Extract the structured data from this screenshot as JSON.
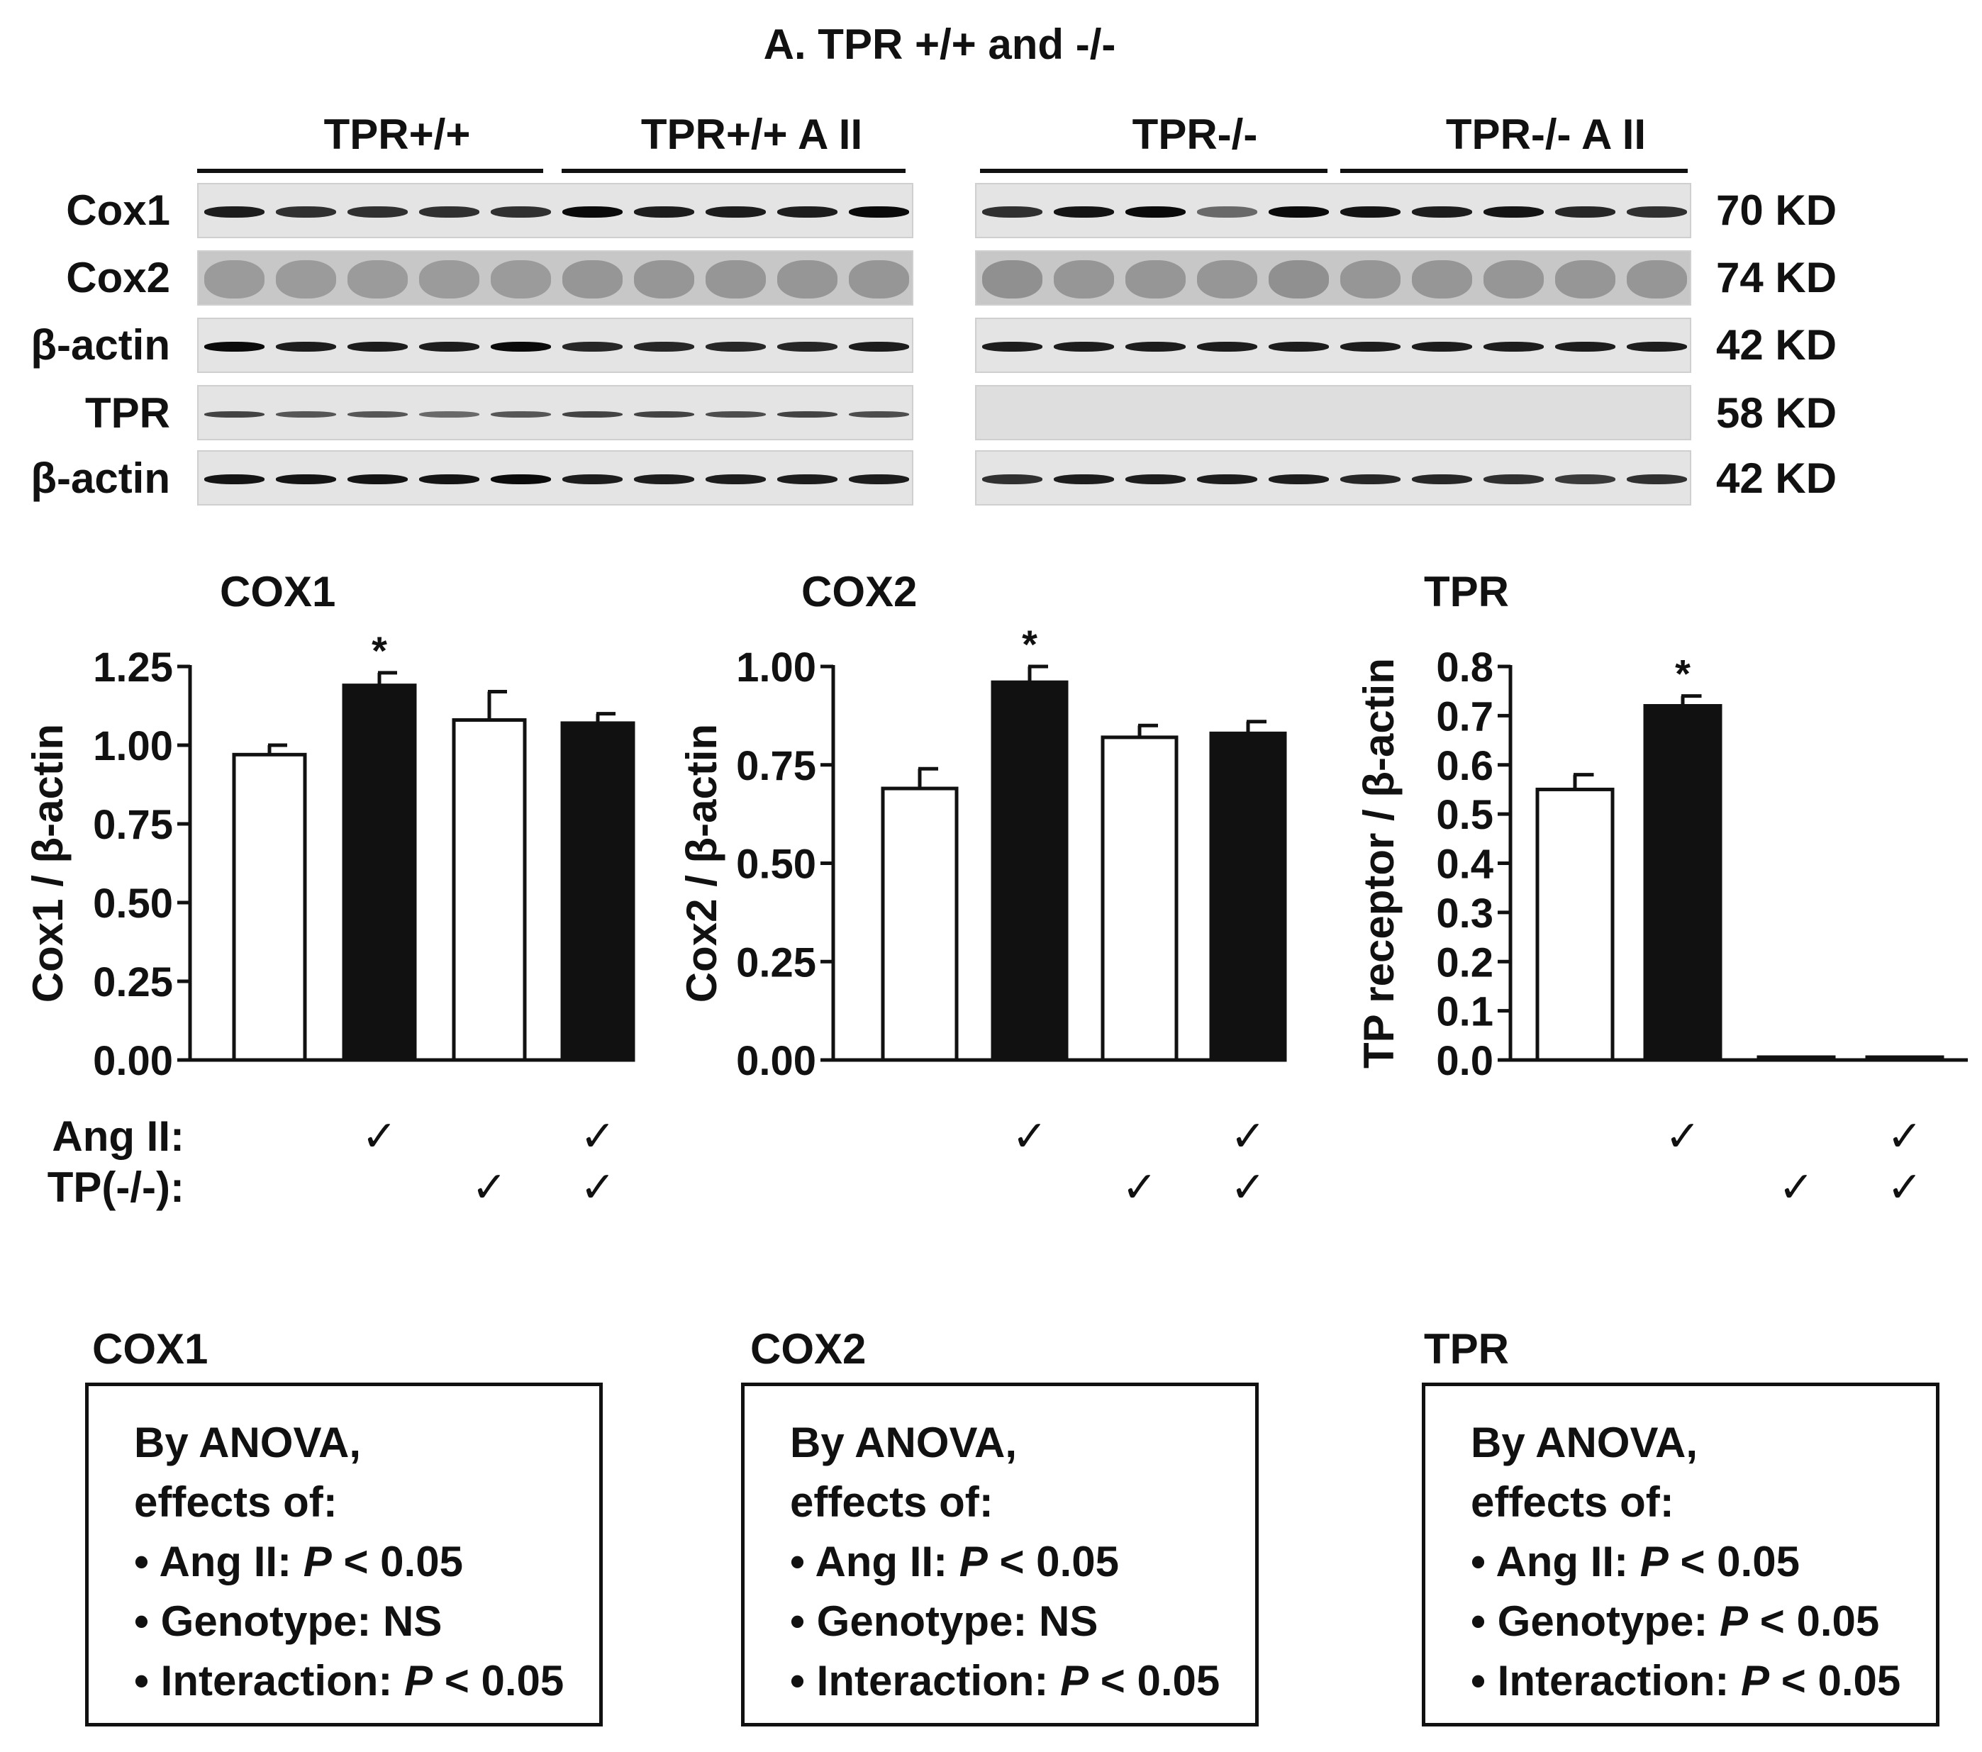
{
  "figure_title": "A. TPR +/+ and -/-",
  "blot": {
    "groups": [
      "TPR+/+",
      "TPR+/+ A II",
      "TPR-/-",
      "TPR-/- A II"
    ],
    "rows": [
      {
        "label": "Cox1",
        "kd": "70 KD"
      },
      {
        "label": "Cox2",
        "kd": "74 KD"
      },
      {
        "label": "β-actin",
        "kd": "42 KD"
      },
      {
        "label": "TPR",
        "kd": "58 KD"
      },
      {
        "label": "β-actin",
        "kd": "42 KD"
      }
    ]
  },
  "chart_data": [
    {
      "type": "bar",
      "title": "COX1",
      "ylabel": "Cox1 / β-actin",
      "ylim": [
        0,
        1.25
      ],
      "yticks": [
        "0.00",
        "0.25",
        "0.50",
        "0.75",
        "1.00",
        "1.25"
      ],
      "ytick_values": [
        0,
        0.25,
        0.5,
        0.75,
        1.0,
        1.25
      ],
      "values": [
        0.97,
        1.19,
        1.08,
        1.07
      ],
      "errors": [
        0.03,
        0.04,
        0.09,
        0.03
      ],
      "bar_colors": [
        "#ffffff",
        "#111111",
        "#ffffff",
        "#111111"
      ],
      "significance": [
        "",
        "*",
        "",
        ""
      ]
    },
    {
      "type": "bar",
      "title": "COX2",
      "ylabel": "Cox2 / β-actin",
      "ylim": [
        0,
        1.0
      ],
      "yticks": [
        "0.00",
        "0.25",
        "0.50",
        "0.75",
        "1.00"
      ],
      "ytick_values": [
        0,
        0.25,
        0.5,
        0.75,
        1.0
      ],
      "values": [
        0.69,
        0.96,
        0.82,
        0.83
      ],
      "errors": [
        0.05,
        0.04,
        0.03,
        0.03
      ],
      "bar_colors": [
        "#ffffff",
        "#111111",
        "#ffffff",
        "#111111"
      ],
      "significance": [
        "",
        "*",
        "",
        ""
      ]
    },
    {
      "type": "bar",
      "title": "TPR",
      "ylabel": "TP receptor / β-actin",
      "ylim": [
        0,
        0.8
      ],
      "yticks": [
        "0.0",
        "0.1",
        "0.2",
        "0.3",
        "0.4",
        "0.5",
        "0.6",
        "0.7",
        "0.8"
      ],
      "ytick_values": [
        0,
        0.1,
        0.2,
        0.3,
        0.4,
        0.5,
        0.6,
        0.7,
        0.8
      ],
      "values": [
        0.55,
        0.72,
        0.0,
        0.0
      ],
      "errors": [
        0.03,
        0.02,
        0,
        0
      ],
      "bar_colors": [
        "#ffffff",
        "#111111",
        "#ffffff",
        "#111111"
      ],
      "significance": [
        "",
        "*",
        "",
        ""
      ]
    }
  ],
  "conditions": {
    "ang_label": "Ang II:",
    "tp_label": "TP(-/-):",
    "check": "✓",
    "ang_ii": [
      false,
      true,
      false,
      true
    ],
    "tp_ko": [
      false,
      false,
      true,
      true
    ]
  },
  "anova": [
    {
      "title": "COX1",
      "line1": "By ANOVA,",
      "line2": "effects of:",
      "ang_pre": "• Ang II: ",
      "ang_p": "P",
      "ang_post": " < 0.05",
      "gen_pre": "• Genotype: NS",
      "gen_p": "",
      "gen_post": "",
      "int_pre": "• Interaction: ",
      "int_p": "P",
      "int_post": " < 0.05"
    },
    {
      "title": "COX2",
      "line1": "By ANOVA,",
      "line2": "effects of:",
      "ang_pre": "• Ang II: ",
      "ang_p": "P",
      "ang_post": " < 0.05",
      "gen_pre": "• Genotype: NS",
      "gen_p": "",
      "gen_post": "",
      "int_pre": "• Interaction: ",
      "int_p": "P",
      "int_post": " < 0.05"
    },
    {
      "title": "TPR",
      "line1": "By ANOVA,",
      "line2": "effects of:",
      "ang_pre": "• Ang II: ",
      "ang_p": "P",
      "ang_post": " < 0.05",
      "gen_pre": "• Genotype: ",
      "gen_p": "P",
      "gen_post": " < 0.05",
      "int_pre": "• Interaction: ",
      "int_p": "P",
      "int_post": " < 0.05"
    }
  ]
}
